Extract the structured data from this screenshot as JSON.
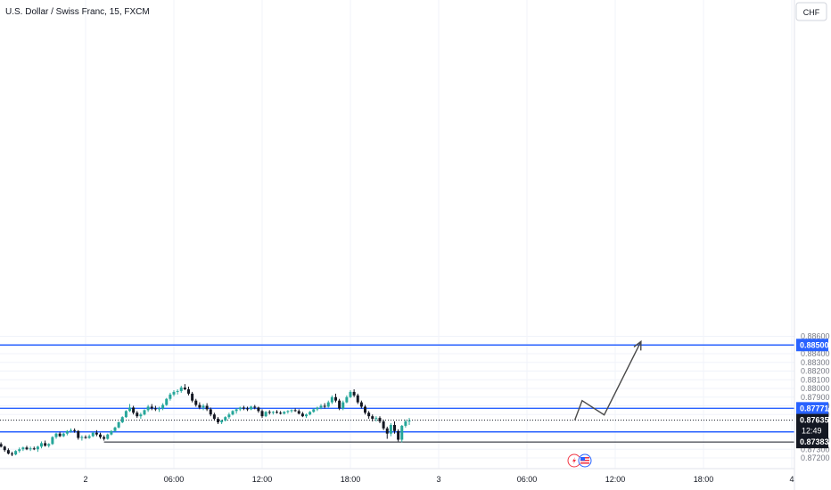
{
  "header": {
    "symbol_title": "U.S. Dollar / Swiss Franc, 15, FXCM",
    "currency_button": "CHF"
  },
  "colors": {
    "up": "#26a69a",
    "down": "#131722",
    "level_line": "#2962ff",
    "marker_line": "#131722",
    "projection": "#4a4a4a",
    "grid": "#f0f3fa",
    "current_price_badge": "#131722",
    "level_badge": "#2962ff"
  },
  "chart_data": {
    "type": "candlestick",
    "title": "U.S. Dollar / Swiss Franc, 15, FXCM",
    "ylim": [
      0.8716,
      0.8866
    ],
    "grid": true,
    "y_ticks": [
      "0.88600",
      "0.88400",
      "0.88300",
      "0.88200",
      "0.88100",
      "0.88000",
      "0.87900",
      "0.87800",
      "0.87700",
      "0.87300",
      "0.87200"
    ],
    "y_tick_values": [
      0.886,
      0.884,
      0.883,
      0.882,
      0.881,
      0.88,
      0.879,
      0.878,
      0.877,
      0.873,
      0.872
    ],
    "partial_tick_label": "0.87400",
    "partial_tick_value": 0.874,
    "x_ticks": [
      "2",
      "06:00",
      "12:00",
      "18:00",
      "3",
      "06:00",
      "12:00",
      "18:00",
      "4"
    ],
    "x_tick_times": [
      0,
      24,
      48,
      72,
      96,
      120,
      144,
      168,
      192
    ],
    "levels": [
      {
        "name": "resistance-0.88500",
        "price": 0.885,
        "label": "0.88500"
      },
      {
        "name": "level-0.87771",
        "price": 0.87771,
        "label": "0.87771"
      },
      {
        "name": "support-0.87500",
        "price": 0.875,
        "label": "0.87500"
      }
    ],
    "marker_line": {
      "price": 0.87383,
      "label": "0.87383",
      "start_time": 5
    },
    "current_price": {
      "price": 0.87635,
      "label": "0.87635",
      "countdown": "12:49"
    },
    "projection_path": [
      {
        "time": 133,
        "price": 0.87635
      },
      {
        "time": 135,
        "price": 0.8786
      },
      {
        "time": 141,
        "price": 0.87695
      },
      {
        "time": 151,
        "price": 0.8854
      }
    ],
    "candles": [
      [
        -23,
        0.8736,
        0.8738,
        0.8732,
        0.8733
      ],
      [
        -22,
        0.8733,
        0.8734,
        0.8727,
        0.8729
      ],
      [
        -21,
        0.8729,
        0.8731,
        0.8724,
        0.8725
      ],
      [
        -20,
        0.8725,
        0.8727,
        0.8722,
        0.8724
      ],
      [
        -19,
        0.8724,
        0.8729,
        0.8723,
        0.8728
      ],
      [
        -18,
        0.8728,
        0.8732,
        0.8726,
        0.873
      ],
      [
        -17,
        0.873,
        0.8733,
        0.8728,
        0.8732
      ],
      [
        -16,
        0.8732,
        0.8734,
        0.8729,
        0.873
      ],
      [
        -15,
        0.873,
        0.8733,
        0.8728,
        0.8731
      ],
      [
        -14,
        0.8731,
        0.8733,
        0.8729,
        0.873
      ],
      [
        -13,
        0.873,
        0.8734,
        0.8727,
        0.8733
      ],
      [
        -12,
        0.8733,
        0.8739,
        0.8731,
        0.8737
      ],
      [
        -11,
        0.8737,
        0.874,
        0.8733,
        0.8734
      ],
      [
        -10,
        0.8734,
        0.8737,
        0.8732,
        0.8736
      ],
      [
        -9,
        0.8736,
        0.8745,
        0.8735,
        0.8744
      ],
      [
        -8,
        0.8744,
        0.8749,
        0.8742,
        0.8748
      ],
      [
        -7,
        0.8748,
        0.875,
        0.8744,
        0.8745
      ],
      [
        -6,
        0.8745,
        0.8749,
        0.8744,
        0.8748
      ],
      [
        -5,
        0.8748,
        0.8752,
        0.8746,
        0.8751
      ],
      [
        -4,
        0.8751,
        0.8754,
        0.8749,
        0.8752
      ],
      [
        -3,
        0.8752,
        0.8754,
        0.8749,
        0.8751
      ],
      [
        -2,
        0.8751,
        0.8752,
        0.8741,
        0.8743
      ],
      [
        -1,
        0.8743,
        0.8746,
        0.874,
        0.8744
      ],
      [
        0,
        0.8744,
        0.8746,
        0.8742,
        0.8743
      ],
      [
        1,
        0.8743,
        0.8747,
        0.8742,
        0.8745
      ],
      [
        2,
        0.8745,
        0.875,
        0.8744,
        0.8749
      ],
      [
        3,
        0.8749,
        0.8752,
        0.8745,
        0.8747
      ],
      [
        4,
        0.8747,
        0.8749,
        0.8742,
        0.8744
      ],
      [
        5,
        0.8744,
        0.8746,
        0.874,
        0.8742
      ],
      [
        6,
        0.8742,
        0.8748,
        0.8741,
        0.8747
      ],
      [
        7,
        0.8747,
        0.8752,
        0.8746,
        0.8751
      ],
      [
        8,
        0.8751,
        0.8756,
        0.875,
        0.8755
      ],
      [
        9,
        0.8755,
        0.8762,
        0.8754,
        0.8761
      ],
      [
        10,
        0.8761,
        0.8768,
        0.876,
        0.8767
      ],
      [
        11,
        0.8767,
        0.8775,
        0.8766,
        0.8774
      ],
      [
        12,
        0.8774,
        0.8782,
        0.8773,
        0.8778
      ],
      [
        13,
        0.8778,
        0.878,
        0.877,
        0.8772
      ],
      [
        14,
        0.8772,
        0.8774,
        0.8766,
        0.8768
      ],
      [
        15,
        0.8768,
        0.8772,
        0.8765,
        0.877
      ],
      [
        16,
        0.877,
        0.8776,
        0.8769,
        0.8775
      ],
      [
        17,
        0.8775,
        0.8781,
        0.8773,
        0.8779
      ],
      [
        18,
        0.8779,
        0.8782,
        0.8775,
        0.8777
      ],
      [
        19,
        0.8777,
        0.878,
        0.8774,
        0.8776
      ],
      [
        20,
        0.8776,
        0.8779,
        0.8773,
        0.8777
      ],
      [
        21,
        0.8777,
        0.8783,
        0.8775,
        0.8781
      ],
      [
        22,
        0.8781,
        0.8789,
        0.878,
        0.8788
      ],
      [
        23,
        0.8788,
        0.8795,
        0.8786,
        0.8793
      ],
      [
        24,
        0.8793,
        0.8798,
        0.8791,
        0.8796
      ],
      [
        25,
        0.8796,
        0.8799,
        0.8793,
        0.8797
      ],
      [
        26,
        0.8797,
        0.8803,
        0.8795,
        0.8801
      ],
      [
        27,
        0.8801,
        0.8805,
        0.8798,
        0.8799
      ],
      [
        28,
        0.8799,
        0.8802,
        0.8792,
        0.8794
      ],
      [
        29,
        0.8794,
        0.8796,
        0.8784,
        0.8786
      ],
      [
        30,
        0.8786,
        0.8788,
        0.8779,
        0.8781
      ],
      [
        31,
        0.8781,
        0.8784,
        0.8776,
        0.8778
      ],
      [
        32,
        0.8778,
        0.8782,
        0.8775,
        0.878
      ],
      [
        33,
        0.878,
        0.8783,
        0.8774,
        0.8776
      ],
      [
        34,
        0.8776,
        0.8778,
        0.8768,
        0.877
      ],
      [
        35,
        0.877,
        0.8772,
        0.8763,
        0.8765
      ],
      [
        36,
        0.8765,
        0.8767,
        0.8759,
        0.8761
      ],
      [
        37,
        0.8761,
        0.8764,
        0.8759,
        0.8763
      ],
      [
        38,
        0.8763,
        0.8768,
        0.8762,
        0.8767
      ],
      [
        39,
        0.8767,
        0.8772,
        0.8765,
        0.877
      ],
      [
        40,
        0.877,
        0.8775,
        0.8769,
        0.8774
      ],
      [
        41,
        0.8774,
        0.8777,
        0.8771,
        0.8776
      ],
      [
        42,
        0.8776,
        0.8779,
        0.8774,
        0.8778
      ],
      [
        43,
        0.8778,
        0.878,
        0.8775,
        0.8777
      ],
      [
        44,
        0.8777,
        0.8779,
        0.8774,
        0.8776
      ],
      [
        45,
        0.8776,
        0.878,
        0.8775,
        0.8779
      ],
      [
        46,
        0.8779,
        0.8781,
        0.8776,
        0.8778
      ],
      [
        47,
        0.8778,
        0.8779,
        0.8772,
        0.8774
      ],
      [
        48,
        0.8774,
        0.8776,
        0.8766,
        0.8768
      ],
      [
        49,
        0.8768,
        0.8774,
        0.8767,
        0.8773
      ],
      [
        50,
        0.8773,
        0.8775,
        0.877,
        0.8772
      ],
      [
        51,
        0.8772,
        0.8774,
        0.877,
        0.8773
      ],
      [
        52,
        0.8773,
        0.8775,
        0.8771,
        0.8772
      ],
      [
        53,
        0.8772,
        0.8774,
        0.877,
        0.8771
      ],
      [
        54,
        0.8771,
        0.8774,
        0.877,
        0.8773
      ],
      [
        55,
        0.8773,
        0.8775,
        0.8771,
        0.8774
      ],
      [
        56,
        0.8774,
        0.8776,
        0.8772,
        0.8775
      ],
      [
        57,
        0.8775,
        0.8777,
        0.8773,
        0.8774
      ],
      [
        58,
        0.8774,
        0.8776,
        0.877,
        0.8771
      ],
      [
        59,
        0.8771,
        0.8773,
        0.8767,
        0.8768
      ],
      [
        60,
        0.8768,
        0.8771,
        0.8766,
        0.877
      ],
      [
        61,
        0.877,
        0.8774,
        0.8769,
        0.8773
      ],
      [
        62,
        0.8773,
        0.8777,
        0.8772,
        0.8776
      ],
      [
        63,
        0.8776,
        0.8779,
        0.8774,
        0.8778
      ],
      [
        64,
        0.8778,
        0.8782,
        0.8776,
        0.878
      ],
      [
        65,
        0.878,
        0.8783,
        0.8777,
        0.8779
      ],
      [
        66,
        0.8779,
        0.8786,
        0.8778,
        0.8784
      ],
      [
        67,
        0.8784,
        0.8792,
        0.8782,
        0.879
      ],
      [
        68,
        0.879,
        0.8794,
        0.8784,
        0.8786
      ],
      [
        69,
        0.8786,
        0.8788,
        0.8775,
        0.8777
      ],
      [
        70,
        0.8777,
        0.8786,
        0.8775,
        0.8784
      ],
      [
        71,
        0.8784,
        0.8792,
        0.8783,
        0.879
      ],
      [
        72,
        0.879,
        0.8798,
        0.8789,
        0.8796
      ],
      [
        73,
        0.8796,
        0.8799,
        0.879,
        0.8792
      ],
      [
        74,
        0.8792,
        0.8794,
        0.8782,
        0.8784
      ],
      [
        75,
        0.8784,
        0.8786,
        0.8777,
        0.8779
      ],
      [
        76,
        0.8779,
        0.8781,
        0.877,
        0.8772
      ],
      [
        77,
        0.8772,
        0.8774,
        0.8765,
        0.8768
      ],
      [
        78,
        0.8768,
        0.877,
        0.8762,
        0.8765
      ],
      [
        79,
        0.8765,
        0.8768,
        0.8762,
        0.8766
      ],
      [
        80,
        0.8766,
        0.8768,
        0.876,
        0.8762
      ],
      [
        81,
        0.8762,
        0.8764,
        0.8752,
        0.8754
      ],
      [
        82,
        0.8754,
        0.8756,
        0.8742,
        0.8748
      ],
      [
        83,
        0.8748,
        0.876,
        0.8745,
        0.8758
      ],
      [
        84,
        0.8758,
        0.8762,
        0.8748,
        0.8751
      ],
      [
        85,
        0.8751,
        0.8753,
        0.8739,
        0.8741
      ],
      [
        86,
        0.8741,
        0.8758,
        0.8738,
        0.8757
      ],
      [
        87,
        0.8757,
        0.8764,
        0.8755,
        0.8762
      ],
      [
        88,
        0.8762,
        0.8766,
        0.8758,
        0.8763
      ]
    ]
  },
  "right_axis": {
    "current_price_label": "0.87635",
    "countdown_label": "12:49"
  }
}
